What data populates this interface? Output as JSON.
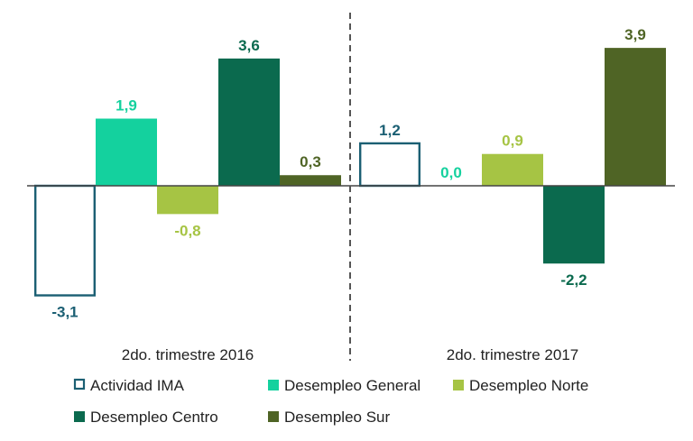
{
  "chart_data": {
    "type": "bar",
    "categories": [
      "2do. trimestre 2016",
      "2do. trimestre 2017"
    ],
    "series": [
      {
        "name": "Actividad IMA",
        "values": [
          -3.1,
          1.2
        ],
        "labels": [
          "-3,1",
          "1,2"
        ],
        "color": "#1b5f73",
        "style": "outline"
      },
      {
        "name": "Desempleo General",
        "values": [
          1.9,
          0.0
        ],
        "labels": [
          "1,9",
          "0,0"
        ],
        "color": "#14d19e"
      },
      {
        "name": "Desempleo Norte",
        "values": [
          -0.8,
          0.9
        ],
        "labels": [
          "-0,8",
          "0,9"
        ],
        "color": "#a6c444"
      },
      {
        "name": "Desempleo Centro",
        "values": [
          3.6,
          -2.2
        ],
        "labels": [
          "3,6",
          "-2,2"
        ],
        "color": "#0b6a4e"
      },
      {
        "name": "Desempleo Sur",
        "values": [
          0.3,
          3.9
        ],
        "labels": [
          "0,3",
          "3,9"
        ],
        "color": "#4f6425"
      }
    ],
    "legend_position": "bottom",
    "grid": false,
    "separator": "dashed vertical line between categories"
  }
}
